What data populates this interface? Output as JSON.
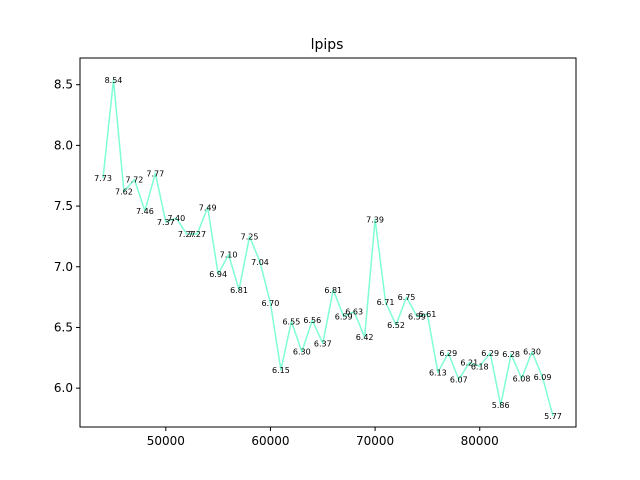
{
  "chart_data": {
    "type": "line",
    "title": "lpips",
    "xlabel": "",
    "ylabel": "",
    "xlim": [
      41800,
      89200
    ],
    "ylim": [
      5.68,
      8.72
    ],
    "xticks": [
      50000,
      60000,
      70000,
      80000
    ],
    "yticks": [
      6.0,
      6.5,
      7.0,
      7.5,
      8.0,
      8.5
    ],
    "xtick_labels": [
      "50000",
      "60000",
      "70000",
      "80000"
    ],
    "ytick_labels": [
      "6.0",
      "6.5",
      "7.0",
      "7.5",
      "8.0",
      "8.5"
    ],
    "grid": false,
    "line_color": "#7fffd4",
    "series": [
      {
        "x": [
          44000,
          45000,
          46000,
          47000,
          48000,
          49000,
          50000,
          51000,
          52000,
          53000,
          54000,
          55000,
          56000,
          57000,
          58000,
          59000,
          60000,
          61000,
          62000,
          63000,
          64000,
          65000,
          66000,
          67000,
          68000,
          69000,
          70000,
          71000,
          72000,
          73000,
          74000,
          75000,
          76000,
          77000,
          78000,
          79000,
          80000,
          81000,
          82000,
          83000,
          84000,
          85000,
          86000,
          87000
        ],
        "values": [
          7.73,
          8.54,
          7.62,
          7.72,
          7.46,
          7.77,
          7.37,
          7.4,
          7.27,
          7.27,
          7.49,
          6.94,
          7.1,
          6.81,
          7.25,
          7.04,
          6.7,
          6.15,
          6.55,
          6.3,
          6.56,
          6.37,
          6.81,
          6.59,
          6.63,
          6.42,
          7.39,
          6.71,
          6.52,
          6.75,
          6.59,
          6.61,
          6.13,
          6.29,
          6.07,
          6.21,
          6.18,
          6.29,
          5.86,
          6.28,
          6.08,
          6.3,
          6.09,
          5.77
        ],
        "labels": [
          "7.73",
          "8.54",
          "7.62",
          "7.72",
          "7.46",
          "7.77",
          "7.37",
          "7.40",
          "7.27",
          "7.27",
          "7.49",
          "6.94",
          "7.10",
          "6.81",
          "7.25",
          "7.04",
          "6.70",
          "6.15",
          "6.55",
          "6.30",
          "6.56",
          "6.37",
          "6.81",
          "6.59",
          "6.63",
          "6.42",
          "7.39",
          "6.71",
          "6.52",
          "6.75",
          "6.59",
          "6.61",
          "6.13",
          "6.29",
          "6.07",
          "6.21",
          "6.18",
          "6.29",
          "5.86",
          "6.28",
          "6.08",
          "6.30",
          "6.09",
          "5.77"
        ]
      }
    ]
  }
}
